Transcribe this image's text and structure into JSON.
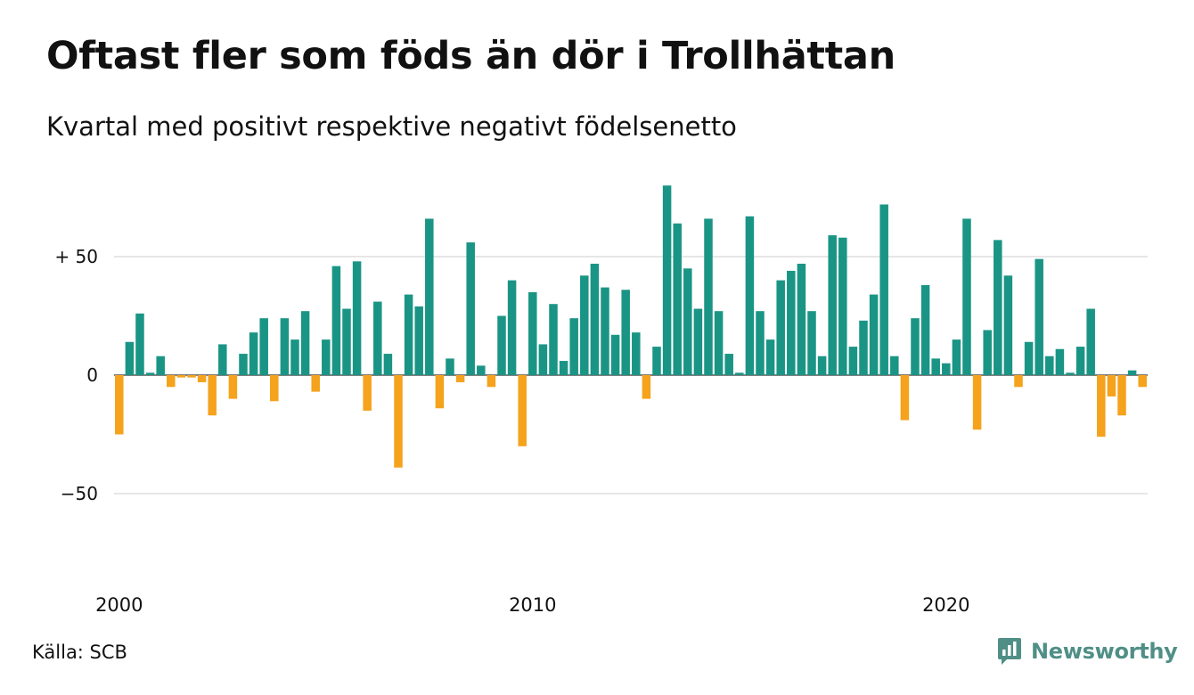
{
  "chart_data": {
    "type": "bar",
    "title": "Oftast fler som föds än dör i Trollhättan",
    "subtitle": "Kvartal med positivt respektive negativt födelsenetto",
    "xlabel": "",
    "ylabel": "",
    "x_tick_labels": [
      "2000",
      "2010",
      "2020"
    ],
    "y_ticks": [
      {
        "value": 50,
        "label": "+ 50"
      },
      {
        "value": 0,
        "label": "0"
      },
      {
        "value": -50,
        "label": "−50"
      }
    ],
    "ylim": [
      -85,
      82
    ],
    "first_quarter": "2000 Q1",
    "values": [
      -25,
      14,
      26,
      1,
      8,
      -5,
      -1,
      -1,
      -3,
      -17,
      13,
      -10,
      9,
      18,
      24,
      -11,
      24,
      15,
      27,
      -7,
      15,
      46,
      28,
      48,
      -15,
      31,
      9,
      -39,
      34,
      29,
      66,
      -14,
      7,
      -3,
      56,
      4,
      -5,
      25,
      40,
      -30,
      35,
      13,
      30,
      6,
      24,
      42,
      47,
      37,
      17,
      36,
      18,
      -10,
      12,
      80,
      64,
      45,
      28,
      66,
      27,
      9,
      1,
      67,
      27,
      15,
      40,
      44,
      47,
      27,
      8,
      59,
      58,
      12,
      23,
      34,
      72,
      8,
      -19,
      24,
      38,
      7,
      5,
      15,
      66,
      -23,
      19,
      57,
      42,
      -5,
      14,
      49,
      8,
      11,
      1,
      12,
      28,
      -26,
      -9,
      -17,
      2,
      -5
    ],
    "colors": {
      "positive": "#1a9585",
      "negative": "#f5a21c",
      "grid": "#dddddd"
    }
  },
  "footer": {
    "source": "Källa: SCB",
    "brand": "Newsworthy"
  }
}
